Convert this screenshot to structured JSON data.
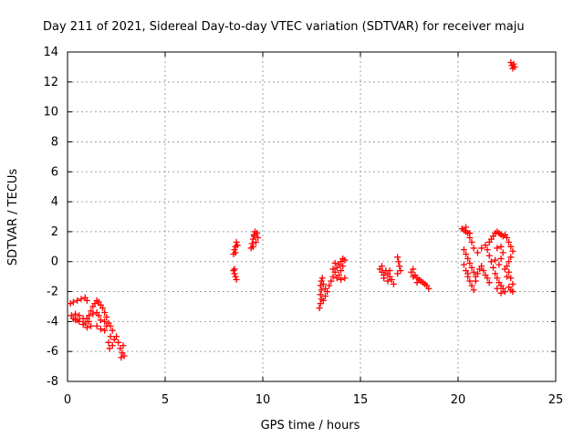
{
  "chart_data": {
    "type": "scatter",
    "title": "Day 211 of 2021, Sidereal Day-to-day VTEC variation (SDTVAR) for receiver maju",
    "xlabel": "GPS time / hours",
    "ylabel": "SDTVAR / TECUs",
    "xlim": [
      0,
      25
    ],
    "ylim": [
      -8,
      14
    ],
    "xticks": [
      0,
      5,
      10,
      15,
      20,
      25
    ],
    "yticks": [
      -8,
      -6,
      -4,
      -2,
      0,
      2,
      4,
      6,
      8,
      10,
      12,
      14
    ],
    "grid": true,
    "marker": "cross",
    "color": "#ff0000",
    "series": [
      {
        "name": "SDTVAR",
        "points": [
          [
            0.15,
            -2.8
          ],
          [
            0.3,
            -2.7
          ],
          [
            0.5,
            -2.6
          ],
          [
            0.7,
            -2.5
          ],
          [
            0.9,
            -2.4
          ],
          [
            1.0,
            -2.6
          ],
          [
            0.2,
            -3.6
          ],
          [
            0.3,
            -3.8
          ],
          [
            0.4,
            -3.5
          ],
          [
            0.5,
            -3.9
          ],
          [
            0.6,
            -3.6
          ],
          [
            0.8,
            -3.8
          ],
          [
            0.9,
            -4.1
          ],
          [
            1.0,
            -3.8
          ],
          [
            1.1,
            -4.0
          ],
          [
            1.2,
            -4.3
          ],
          [
            1.0,
            -4.4
          ],
          [
            0.8,
            -4.2
          ],
          [
            0.6,
            -4.0
          ],
          [
            0.4,
            -3.9
          ],
          [
            1.1,
            -3.6
          ],
          [
            1.2,
            -3.3
          ],
          [
            1.3,
            -3.0
          ],
          [
            1.4,
            -2.8
          ],
          [
            1.5,
            -2.6
          ],
          [
            1.6,
            -2.7
          ],
          [
            1.7,
            -2.9
          ],
          [
            1.8,
            -3.1
          ],
          [
            1.9,
            -3.4
          ],
          [
            2.0,
            -3.7
          ],
          [
            1.9,
            -4.0
          ],
          [
            1.7,
            -3.9
          ],
          [
            1.6,
            -3.6
          ],
          [
            1.5,
            -3.4
          ],
          [
            1.3,
            -3.5
          ],
          [
            1.5,
            -4.3
          ],
          [
            1.7,
            -4.5
          ],
          [
            1.9,
            -4.6
          ],
          [
            2.0,
            -4.3
          ],
          [
            2.1,
            -4.1
          ],
          [
            2.2,
            -4.3
          ],
          [
            2.3,
            -4.6
          ],
          [
            2.2,
            -5.0
          ],
          [
            2.1,
            -5.4
          ],
          [
            2.15,
            -5.8
          ],
          [
            2.3,
            -5.6
          ],
          [
            2.4,
            -5.2
          ],
          [
            2.5,
            -5.0
          ],
          [
            2.6,
            -5.4
          ],
          [
            2.7,
            -5.8
          ],
          [
            2.8,
            -6.1
          ],
          [
            2.85,
            -5.6
          ],
          [
            2.75,
            -6.4
          ],
          [
            2.9,
            -6.3
          ],
          [
            8.5,
            -0.6
          ],
          [
            8.55,
            -0.8
          ],
          [
            8.6,
            -1.0
          ],
          [
            8.65,
            -1.2
          ],
          [
            8.55,
            -0.5
          ],
          [
            8.5,
            0.5
          ],
          [
            8.55,
            0.8
          ],
          [
            8.6,
            1.0
          ],
          [
            8.65,
            1.3
          ],
          [
            8.7,
            1.1
          ],
          [
            8.6,
            0.6
          ],
          [
            9.4,
            0.9
          ],
          [
            9.45,
            1.2
          ],
          [
            9.5,
            1.5
          ],
          [
            9.55,
            1.8
          ],
          [
            9.6,
            2.0
          ],
          [
            9.7,
            1.9
          ],
          [
            9.75,
            1.6
          ],
          [
            9.65,
            1.3
          ],
          [
            9.5,
            1.0
          ],
          [
            9.55,
            1.7
          ],
          [
            12.9,
            -3.1
          ],
          [
            12.95,
            -2.8
          ],
          [
            13.0,
            -2.5
          ],
          [
            12.95,
            -2.2
          ],
          [
            13.0,
            -1.9
          ],
          [
            12.95,
            -1.6
          ],
          [
            13.0,
            -1.3
          ],
          [
            13.05,
            -1.1
          ],
          [
            13.1,
            -1.5
          ],
          [
            13.2,
            -1.8
          ],
          [
            13.2,
            -2.3
          ],
          [
            13.1,
            -2.6
          ],
          [
            13.3,
            -2.0
          ],
          [
            13.4,
            -1.6
          ],
          [
            13.5,
            -1.3
          ],
          [
            13.6,
            -1.0
          ],
          [
            13.7,
            -0.7
          ],
          [
            13.8,
            -0.4
          ],
          [
            13.9,
            -0.2
          ],
          [
            14.0,
            0.0
          ],
          [
            14.1,
            0.2
          ],
          [
            14.2,
            0.1
          ],
          [
            14.1,
            -0.3
          ],
          [
            14.0,
            -0.6
          ],
          [
            13.9,
            -0.9
          ],
          [
            13.8,
            -1.1
          ],
          [
            14.0,
            -1.2
          ],
          [
            14.2,
            -1.1
          ],
          [
            13.6,
            -0.5
          ],
          [
            13.7,
            -0.1
          ],
          [
            16.0,
            -0.5
          ],
          [
            16.1,
            -0.7
          ],
          [
            16.2,
            -0.9
          ],
          [
            16.3,
            -0.6
          ],
          [
            16.4,
            -0.8
          ],
          [
            16.5,
            -1.0
          ],
          [
            16.6,
            -1.2
          ],
          [
            16.7,
            -1.5
          ],
          [
            16.5,
            -0.6
          ],
          [
            16.4,
            -1.3
          ],
          [
            16.2,
            -1.1
          ],
          [
            16.1,
            -0.3
          ],
          [
            16.9,
            0.3
          ],
          [
            16.95,
            0.0
          ],
          [
            17.0,
            -0.3
          ],
          [
            17.05,
            -0.6
          ],
          [
            16.9,
            -0.8
          ],
          [
            17.6,
            -0.7
          ],
          [
            17.7,
            -1.0
          ],
          [
            17.8,
            -0.9
          ],
          [
            17.9,
            -1.1
          ],
          [
            18.0,
            -1.2
          ],
          [
            18.1,
            -1.3
          ],
          [
            18.2,
            -1.4
          ],
          [
            18.3,
            -1.5
          ],
          [
            18.4,
            -1.6
          ],
          [
            18.5,
            -1.8
          ],
          [
            17.7,
            -0.5
          ],
          [
            17.9,
            -1.4
          ],
          [
            20.2,
            2.2
          ],
          [
            20.3,
            2.1
          ],
          [
            20.4,
            2.0
          ],
          [
            20.5,
            1.9
          ],
          [
            20.6,
            1.6
          ],
          [
            20.7,
            1.3
          ],
          [
            20.8,
            0.9
          ],
          [
            20.6,
            1.9
          ],
          [
            20.4,
            2.3
          ],
          [
            20.3,
            0.8
          ],
          [
            20.4,
            0.5
          ],
          [
            20.5,
            0.2
          ],
          [
            20.6,
            -0.1
          ],
          [
            20.7,
            -0.4
          ],
          [
            20.8,
            -0.7
          ],
          [
            20.9,
            -1.0
          ],
          [
            20.3,
            -0.2
          ],
          [
            20.4,
            -0.6
          ],
          [
            20.5,
            -1.0
          ],
          [
            20.6,
            -1.3
          ],
          [
            20.7,
            -1.6
          ],
          [
            20.8,
            -1.9
          ],
          [
            20.5,
            -0.8
          ],
          [
            20.9,
            -1.3
          ],
          [
            21.0,
            -0.8
          ],
          [
            21.1,
            -0.5
          ],
          [
            21.2,
            -0.3
          ],
          [
            21.3,
            -0.6
          ],
          [
            21.4,
            -0.9
          ],
          [
            21.5,
            -1.1
          ],
          [
            21.6,
            -1.4
          ],
          [
            21.0,
            0.6
          ],
          [
            21.2,
            0.9
          ],
          [
            21.4,
            1.1
          ],
          [
            21.5,
            0.8
          ],
          [
            21.6,
            0.4
          ],
          [
            21.7,
            0.0
          ],
          [
            21.8,
            -0.4
          ],
          [
            21.9,
            -0.8
          ],
          [
            22.0,
            -1.1
          ],
          [
            22.1,
            -1.4
          ],
          [
            22.2,
            -1.6
          ],
          [
            22.3,
            -1.8
          ],
          [
            22.4,
            -2.0
          ],
          [
            22.2,
            -2.1
          ],
          [
            22.0,
            -1.8
          ],
          [
            21.6,
            1.3
          ],
          [
            21.7,
            1.5
          ],
          [
            21.8,
            1.7
          ],
          [
            21.9,
            1.9
          ],
          [
            22.0,
            2.0
          ],
          [
            22.1,
            1.9
          ],
          [
            22.2,
            1.8
          ],
          [
            22.3,
            1.7
          ],
          [
            22.4,
            1.8
          ],
          [
            22.5,
            1.6
          ],
          [
            22.6,
            1.3
          ],
          [
            22.7,
            1.0
          ],
          [
            22.8,
            0.7
          ],
          [
            22.7,
            0.3
          ],
          [
            22.6,
            0.0
          ],
          [
            22.5,
            -0.3
          ],
          [
            22.6,
            -0.7
          ],
          [
            22.7,
            -1.1
          ],
          [
            22.8,
            -1.5
          ],
          [
            22.7,
            -1.9
          ],
          [
            22.8,
            -2.0
          ],
          [
            22.6,
            -1.7
          ],
          [
            22.0,
            0.9
          ],
          [
            22.2,
            1.0
          ],
          [
            22.3,
            0.6
          ],
          [
            22.2,
            0.2
          ],
          [
            22.1,
            -0.2
          ],
          [
            21.9,
            0.1
          ],
          [
            22.4,
            -0.5
          ],
          [
            22.5,
            -1.0
          ],
          [
            22.7,
            13.3
          ],
          [
            22.75,
            13.1
          ],
          [
            22.8,
            12.9
          ],
          [
            22.85,
            13.2
          ],
          [
            22.9,
            13.0
          ]
        ]
      }
    ]
  }
}
